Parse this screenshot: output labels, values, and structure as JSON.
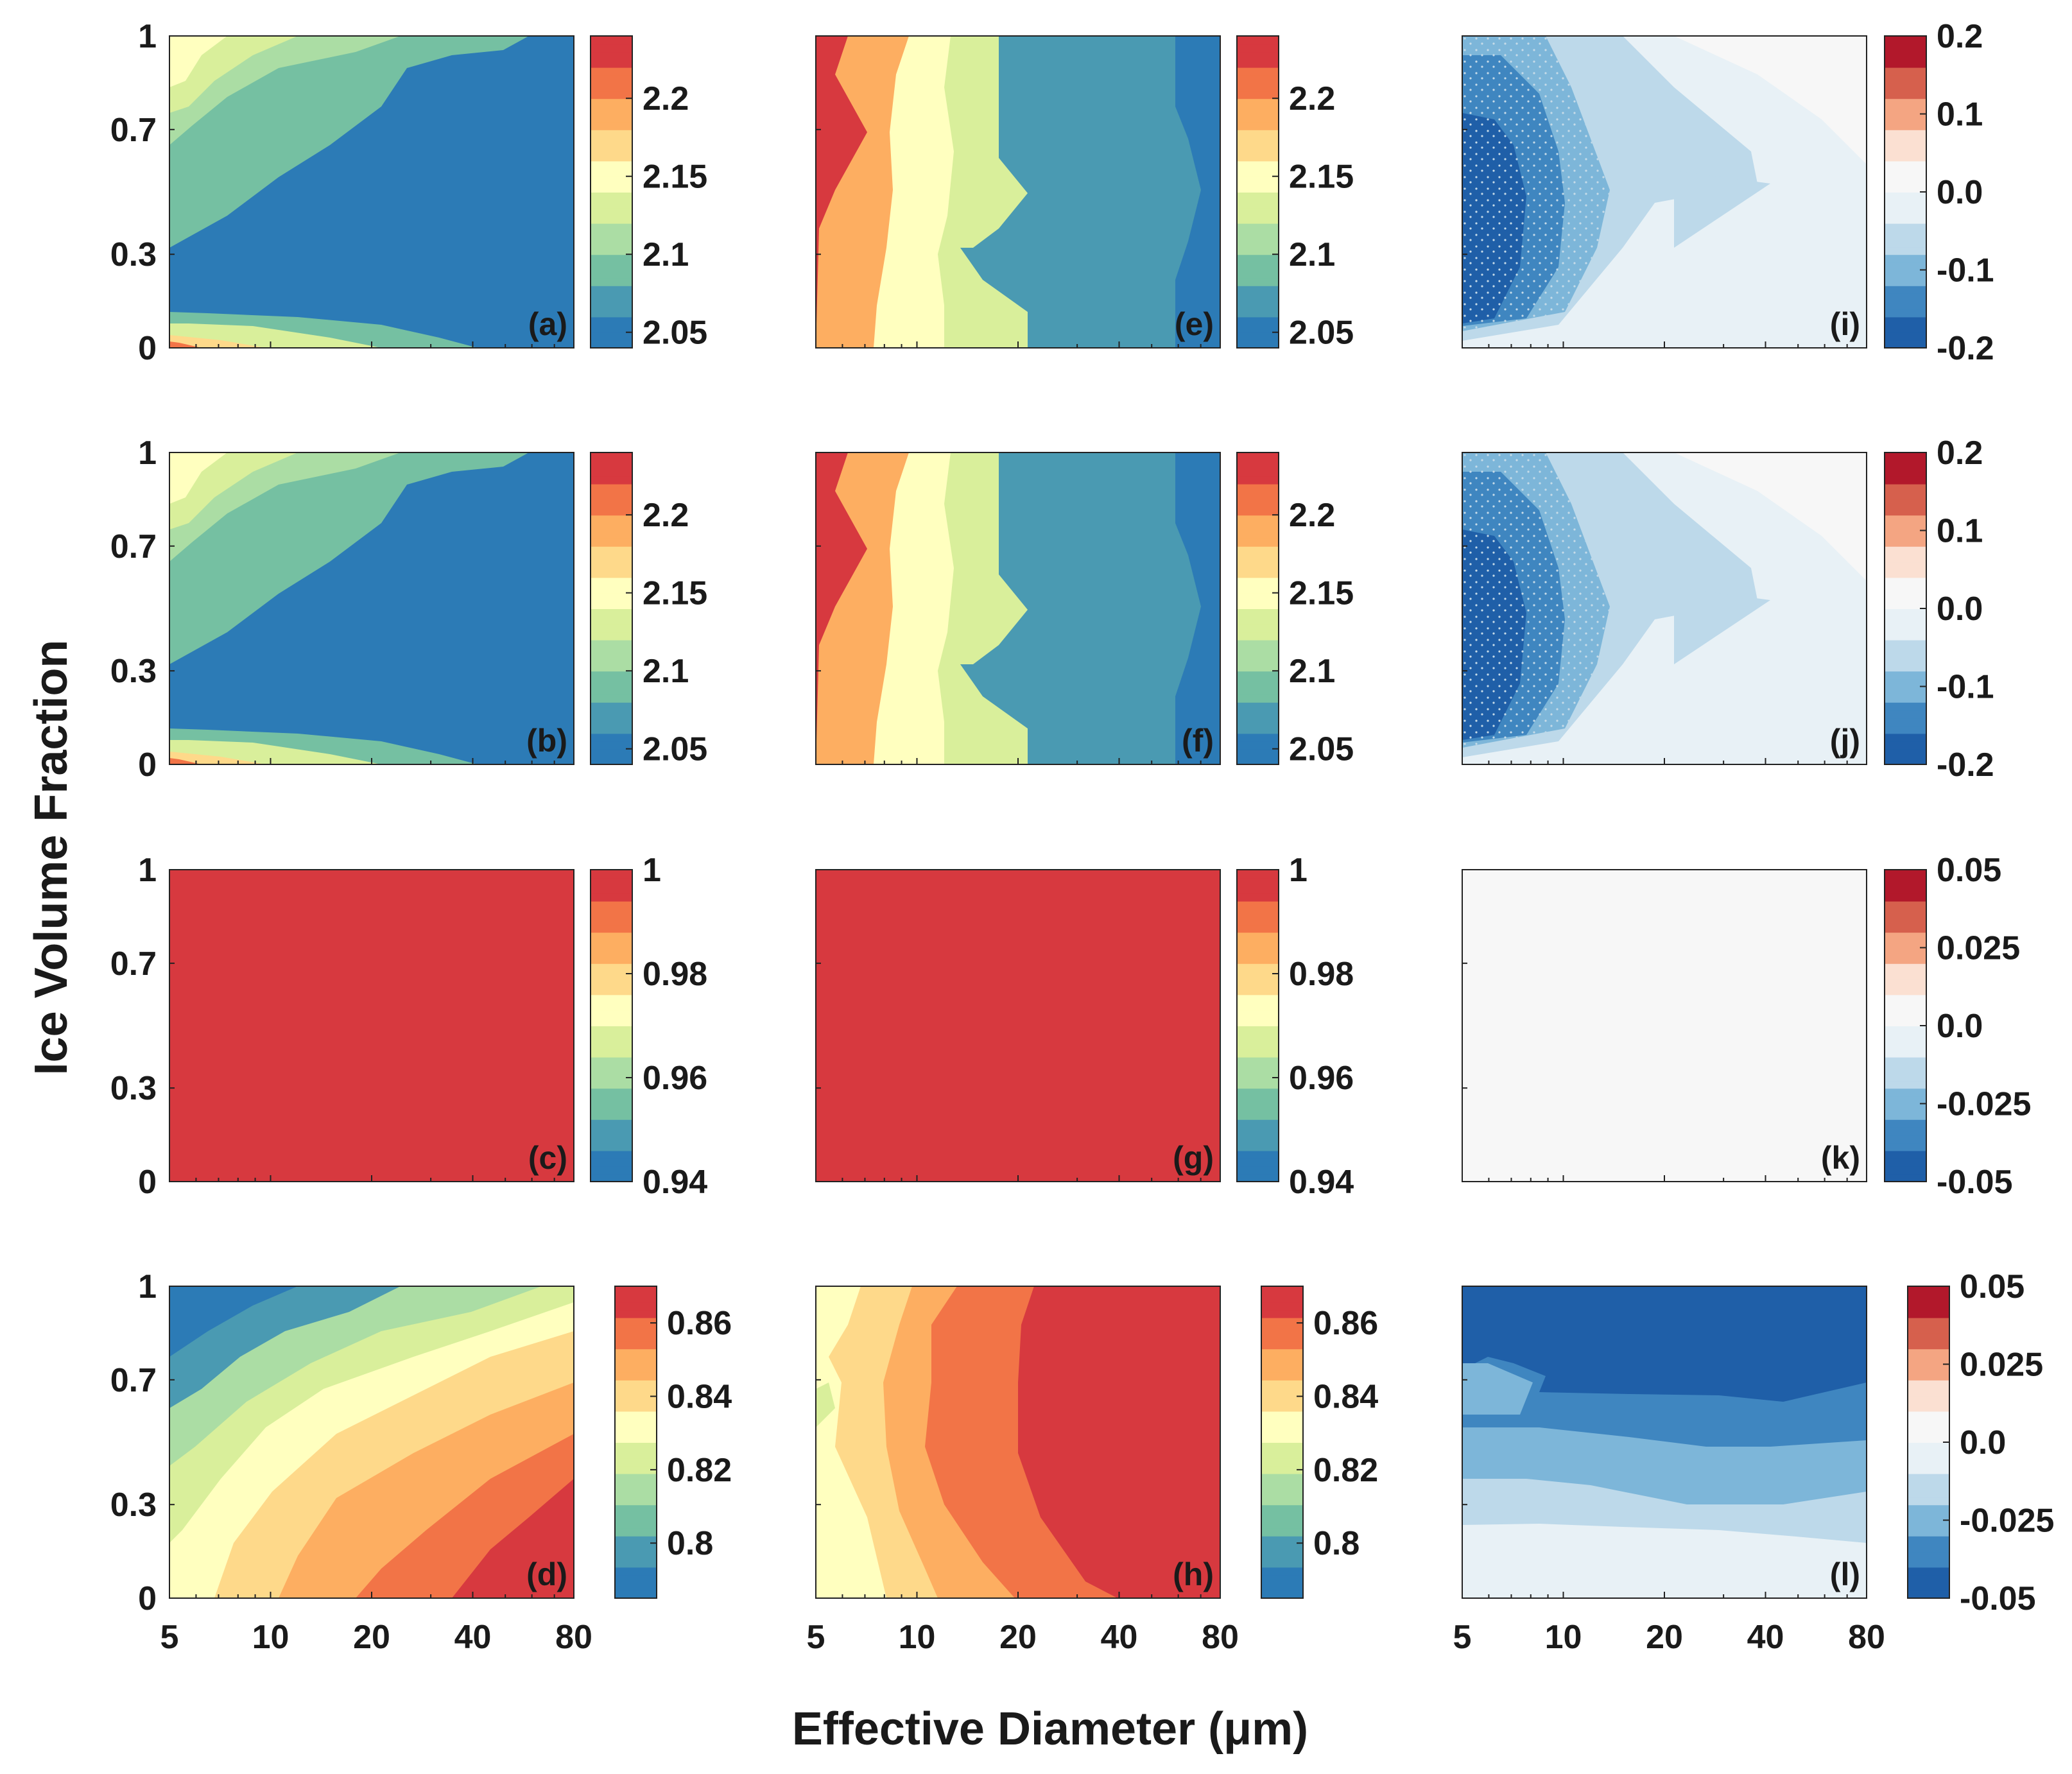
{
  "figure": {
    "ylabel": "Ice Volume Fraction",
    "xlabel": "Effective Diameter (μm)",
    "x_ticks": [
      "5",
      "10",
      "20",
      "40",
      "80"
    ],
    "y_ticks": [
      "0",
      "0.3",
      "0.7",
      "1"
    ]
  },
  "colors": {
    "spectral": [
      "#2c7bb6",
      "#4a9ab2",
      "#75c0a2",
      "#abdda4",
      "#d9ef9b",
      "#ffffbf",
      "#fed98a",
      "#fdae61",
      "#f27447",
      "#d7393f"
    ],
    "diverging": [
      "#1f5fa8",
      "#3f86c0",
      "#7db6d9",
      "#bdd9ea",
      "#e8f1f6",
      "#f7f7f7",
      "#fbe0d2",
      "#f4a582",
      "#d6604d",
      "#b2182b"
    ]
  },
  "chart_data": [
    {
      "id": "a",
      "label": "(a)",
      "type": "heatmap",
      "colormap": "spectral",
      "cbar_ticks": [
        "2.05",
        "2.1",
        "2.15",
        "2.2"
      ],
      "cbar_range": [
        2.04,
        2.24
      ],
      "x": [
        5,
        80
      ],
      "ylim": [
        0,
        1
      ]
    },
    {
      "id": "e",
      "label": "(e)",
      "type": "heatmap",
      "colormap": "spectral",
      "cbar_ticks": [
        "2.05",
        "2.1",
        "2.15",
        "2.2"
      ],
      "cbar_range": [
        2.04,
        2.24
      ],
      "x": [
        5,
        80
      ],
      "ylim": [
        0,
        1
      ]
    },
    {
      "id": "i",
      "label": "(i)",
      "type": "heatmap",
      "colormap": "diverging",
      "cbar_ticks": [
        "-0.2",
        "-0.1",
        "0.0",
        "0.1",
        "0.2"
      ],
      "cbar_range": [
        -0.2,
        0.2
      ],
      "x": [
        5,
        80
      ],
      "ylim": [
        0,
        1
      ]
    },
    {
      "id": "b",
      "label": "(b)",
      "type": "heatmap",
      "colormap": "spectral",
      "cbar_ticks": [
        "2.05",
        "2.1",
        "2.15",
        "2.2"
      ],
      "cbar_range": [
        2.04,
        2.24
      ],
      "x": [
        5,
        80
      ],
      "ylim": [
        0,
        1
      ]
    },
    {
      "id": "f",
      "label": "(f)",
      "type": "heatmap",
      "colormap": "spectral",
      "cbar_ticks": [
        "2.05",
        "2.1",
        "2.15",
        "2.2"
      ],
      "cbar_range": [
        2.04,
        2.24
      ],
      "x": [
        5,
        80
      ],
      "ylim": [
        0,
        1
      ]
    },
    {
      "id": "j",
      "label": "(j)",
      "type": "heatmap",
      "colormap": "diverging",
      "cbar_ticks": [
        "-0.2",
        "-0.1",
        "0.0",
        "0.1",
        "0.2"
      ],
      "cbar_range": [
        -0.2,
        0.2
      ],
      "x": [
        5,
        80
      ],
      "ylim": [
        0,
        1
      ]
    },
    {
      "id": "c",
      "label": "(c)",
      "type": "heatmap",
      "colormap": "spectral",
      "cbar_ticks": [
        "0.94",
        "0.96",
        "0.98",
        "1"
      ],
      "cbar_range": [
        0.94,
        1.0
      ],
      "x": [
        5,
        80
      ],
      "ylim": [
        0,
        1
      ]
    },
    {
      "id": "g",
      "label": "(g)",
      "type": "heatmap",
      "colormap": "spectral",
      "cbar_ticks": [
        "0.94",
        "0.96",
        "0.98",
        "1"
      ],
      "cbar_range": [
        0.94,
        1.0
      ],
      "x": [
        5,
        80
      ],
      "ylim": [
        0,
        1
      ]
    },
    {
      "id": "k",
      "label": "(k)",
      "type": "heatmap",
      "colormap": "diverging",
      "cbar_ticks": [
        "-0.05",
        "-0.025",
        "0.0",
        "0.025",
        "0.05"
      ],
      "cbar_range": [
        -0.05,
        0.05
      ],
      "x": [
        5,
        80
      ],
      "ylim": [
        0,
        1
      ]
    },
    {
      "id": "d",
      "label": "(d)",
      "type": "heatmap",
      "colormap": "spectral",
      "cbar_ticks": [
        "0.8",
        "0.82",
        "0.84",
        "0.86"
      ],
      "cbar_range": [
        0.785,
        0.87
      ],
      "x": [
        5,
        80
      ],
      "ylim": [
        0,
        1
      ]
    },
    {
      "id": "h",
      "label": "(h)",
      "type": "heatmap",
      "colormap": "spectral",
      "cbar_ticks": [
        "0.8",
        "0.82",
        "0.84",
        "0.86"
      ],
      "cbar_range": [
        0.785,
        0.87
      ],
      "x": [
        5,
        80
      ],
      "ylim": [
        0,
        1
      ]
    },
    {
      "id": "l",
      "label": "(l)",
      "type": "heatmap",
      "colormap": "diverging",
      "cbar_ticks": [
        "-0.05",
        "-0.025",
        "0.0",
        "0.025",
        "0.05"
      ],
      "cbar_range": [
        -0.05,
        0.05
      ],
      "x": [
        5,
        80
      ],
      "ylim": [
        0,
        1
      ]
    }
  ]
}
